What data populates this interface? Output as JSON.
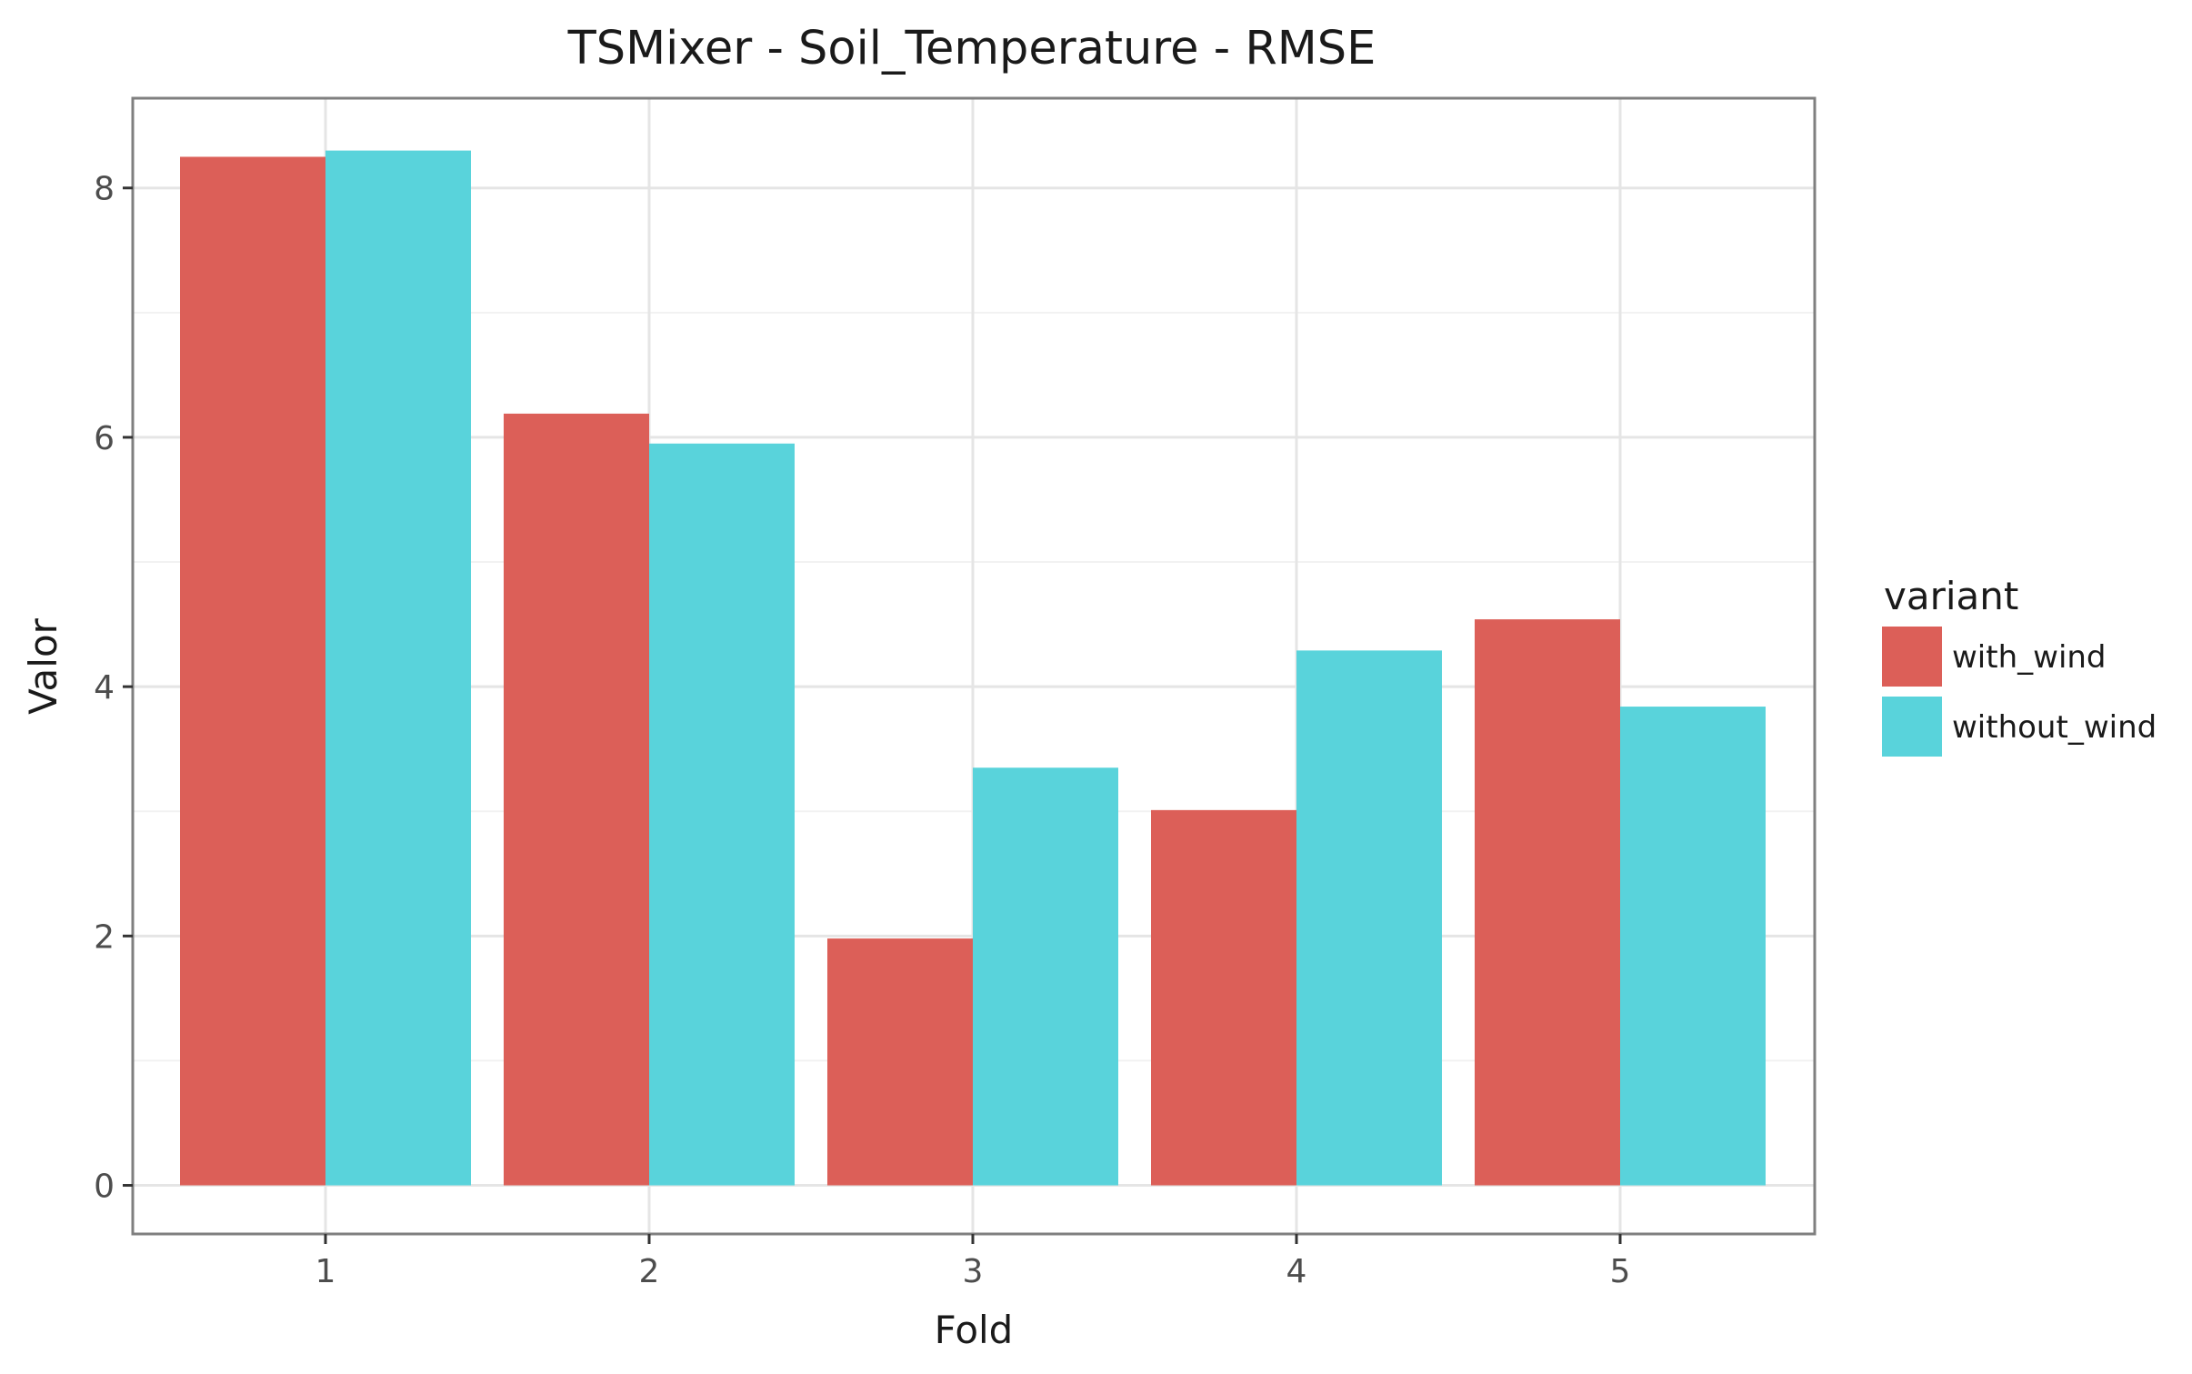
{
  "chart_data": {
    "type": "bar",
    "title": "TSMixer - Soil_Temperature - RMSE",
    "xlabel": "Fold",
    "ylabel": "Valor",
    "categories": [
      "1",
      "2",
      "3",
      "4",
      "5"
    ],
    "series": [
      {
        "name": "with_wind",
        "color": "#dc5f58",
        "values": [
          8.25,
          6.19,
          1.98,
          3.01,
          4.54
        ]
      },
      {
        "name": "without_wind",
        "color": "#59d3db",
        "values": [
          8.3,
          5.95,
          3.35,
          4.29,
          3.84
        ]
      }
    ],
    "yticks": [
      0,
      2,
      4,
      6,
      8
    ],
    "ylim": [
      -0.39,
      8.72
    ],
    "legend": {
      "title": "variant",
      "position": "right"
    },
    "grid": true
  }
}
